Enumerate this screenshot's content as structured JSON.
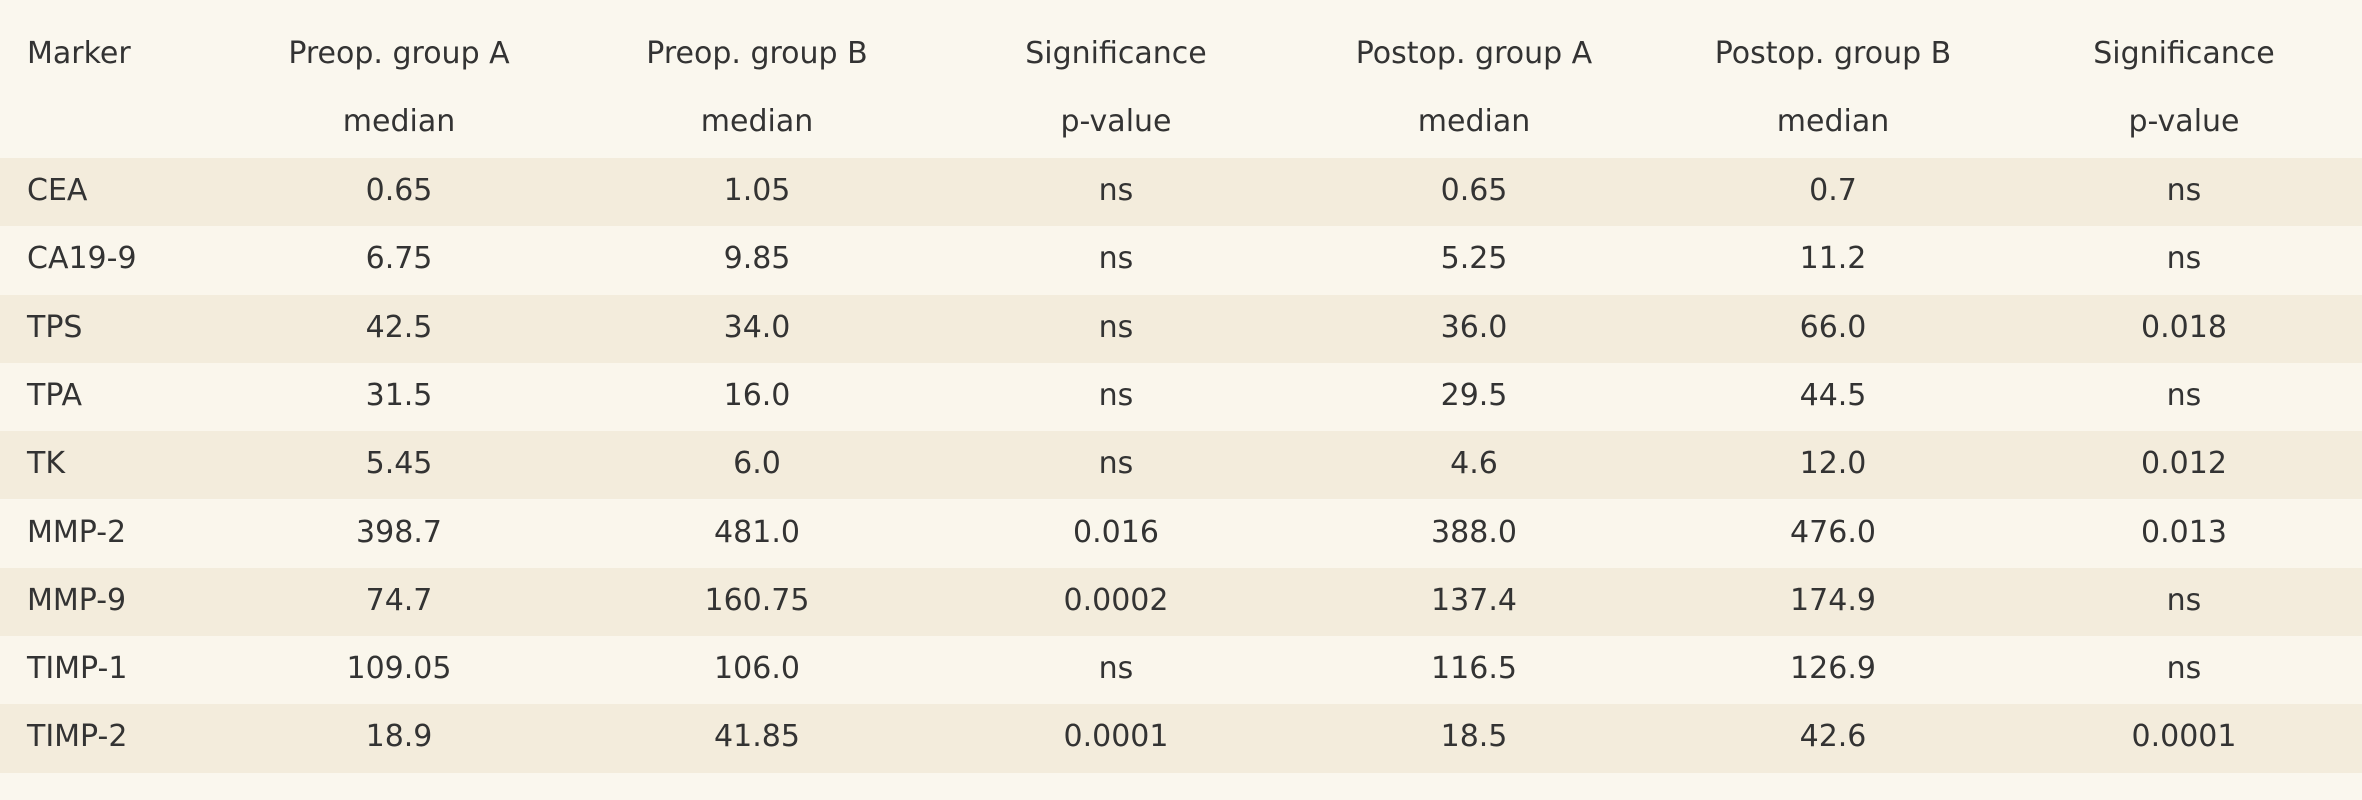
{
  "table": {
    "header": [
      [
        "Marker",
        ""
      ],
      [
        "Preop. group A",
        "median"
      ],
      [
        "Preop. group B",
        "median"
      ],
      [
        "Significance",
        "p-value"
      ],
      [
        "Postop. group A",
        "median"
      ],
      [
        "Postop. group B",
        "median"
      ],
      [
        "Significance",
        "p-value"
      ]
    ],
    "rows": [
      [
        "CEA",
        "0.65",
        "1.05",
        "ns",
        "0.65",
        "0.7",
        "ns"
      ],
      [
        "CA19-9",
        "6.75",
        "9.85",
        "ns",
        "5.25",
        "11.2",
        "ns"
      ],
      [
        "TPS",
        "42.5",
        "34.0",
        "ns",
        "36.0",
        "66.0",
        "0.018"
      ],
      [
        "TPA",
        "31.5",
        "16.0",
        "ns",
        "29.5",
        "44.5",
        "ns"
      ],
      [
        "TK",
        "5.45",
        "6.0",
        "ns",
        "4.6",
        "12.0",
        "0.012"
      ],
      [
        "MMP-2",
        "398.7",
        "481.0",
        "0.016",
        "388.0",
        "476.0",
        "0.013"
      ],
      [
        "MMP-9",
        "74.7",
        "160.75",
        "0.0002",
        "137.4",
        "174.9",
        "ns"
      ],
      [
        "TIMP-1",
        "109.05",
        "106.0",
        "ns",
        "116.5",
        "126.9",
        "ns"
      ],
      [
        "TIMP-2",
        "18.9",
        "41.85",
        "0.0001",
        "18.5",
        "42.6",
        "0.0001"
      ]
    ]
  }
}
